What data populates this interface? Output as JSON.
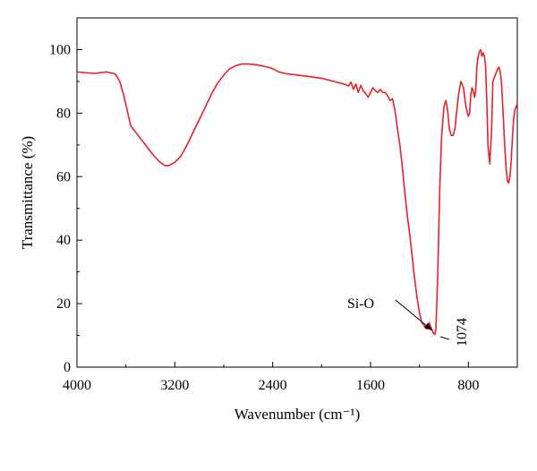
{
  "chart_data": {
    "type": "line",
    "title": "",
    "xlabel": "Wavenumber (cm⁻¹)",
    "ylabel": "Transmittance (%)",
    "xlim": [
      4000,
      400
    ],
    "ylim": [
      0,
      110
    ],
    "x_reversed": true,
    "grid": false,
    "legend": "none",
    "line_color": "#e8202a",
    "x_ticks": [
      4000,
      3200,
      2400,
      1600,
      800
    ],
    "y_ticks": [
      0,
      20,
      40,
      60,
      80,
      100
    ],
    "x_tick_labels": [
      "4000",
      "3200",
      "2400",
      "1600",
      "800"
    ],
    "y_tick_labels": [
      "0",
      "20",
      "40",
      "60",
      "80",
      "100"
    ],
    "annotations": [
      {
        "text": "Si-O",
        "target_x": 1074,
        "target_y": 11
      },
      {
        "text": "1074",
        "target_x": 1074,
        "target_y": 10.5,
        "rotated": true
      }
    ],
    "series": [
      {
        "x": [
          4000,
          3860,
          3760,
          3700,
          3680,
          3650,
          3620,
          3560,
          3500,
          3440,
          3380,
          3320,
          3280,
          3250,
          3200,
          3150,
          3100,
          3050,
          3000,
          2950,
          2900,
          2850,
          2800,
          2750,
          2700,
          2650,
          2600,
          2550,
          2500,
          2450,
          2420,
          2400,
          2380,
          2350,
          2300,
          2200,
          2100,
          2000,
          1950,
          1900,
          1850,
          1800,
          1780,
          1760,
          1740,
          1720,
          1700,
          1680,
          1660,
          1640,
          1620,
          1600,
          1580,
          1560,
          1540,
          1520,
          1500,
          1480,
          1460,
          1440,
          1420,
          1400,
          1380,
          1360,
          1340,
          1320,
          1300,
          1280,
          1260,
          1240,
          1220,
          1200,
          1180,
          1160,
          1140,
          1120,
          1100,
          1090,
          1080,
          1074,
          1065,
          1050,
          1035,
          1020,
          1000,
          985,
          970,
          955,
          940,
          925,
          910,
          900,
          880,
          860,
          840,
          820,
          800,
          790,
          780,
          770,
          760,
          750,
          740,
          730,
          720,
          710,
          700,
          690,
          680,
          670,
          660,
          650,
          640,
          625,
          610,
          600,
          590,
          580,
          570,
          560,
          550,
          540,
          530,
          520,
          510,
          500,
          490,
          480,
          470,
          460,
          450,
          440,
          430,
          420,
          410,
          400
        ],
        "y": [
          93,
          92.5,
          93,
          92.5,
          92,
          90,
          86,
          76,
          73,
          70,
          67,
          64.5,
          63.5,
          63.5,
          64.5,
          66.5,
          70,
          74,
          78,
          82,
          86,
          89.5,
          92,
          94,
          95,
          95.5,
          95.5,
          95.3,
          95,
          94.6,
          94.3,
          94,
          93.6,
          93,
          92.5,
          92,
          91.5,
          91,
          90.5,
          90,
          89.5,
          89,
          88.5,
          89.8,
          87.5,
          89.2,
          86.5,
          88.8,
          87,
          86.2,
          85,
          86.5,
          88,
          87,
          86.5,
          87.5,
          86.5,
          86.5,
          85.5,
          84,
          84.5,
          81,
          75,
          70,
          63,
          55,
          48,
          42,
          35,
          28,
          22,
          17,
          14,
          13,
          12,
          14,
          12,
          11,
          10.5,
          10.3,
          12,
          30,
          55,
          72,
          82,
          84,
          81,
          75,
          73,
          73,
          75,
          79,
          86,
          90,
          88,
          82,
          79,
          80,
          86,
          88,
          87,
          85,
          87,
          95,
          98,
          99.3,
          100,
          98,
          99,
          98,
          95,
          85,
          70,
          64,
          75,
          90,
          91,
          92,
          93,
          94,
          94.5,
          93,
          90,
          83,
          75,
          68,
          62,
          58.5,
          58,
          60,
          65,
          72,
          78,
          81,
          82,
          83
        ]
      }
    ]
  }
}
